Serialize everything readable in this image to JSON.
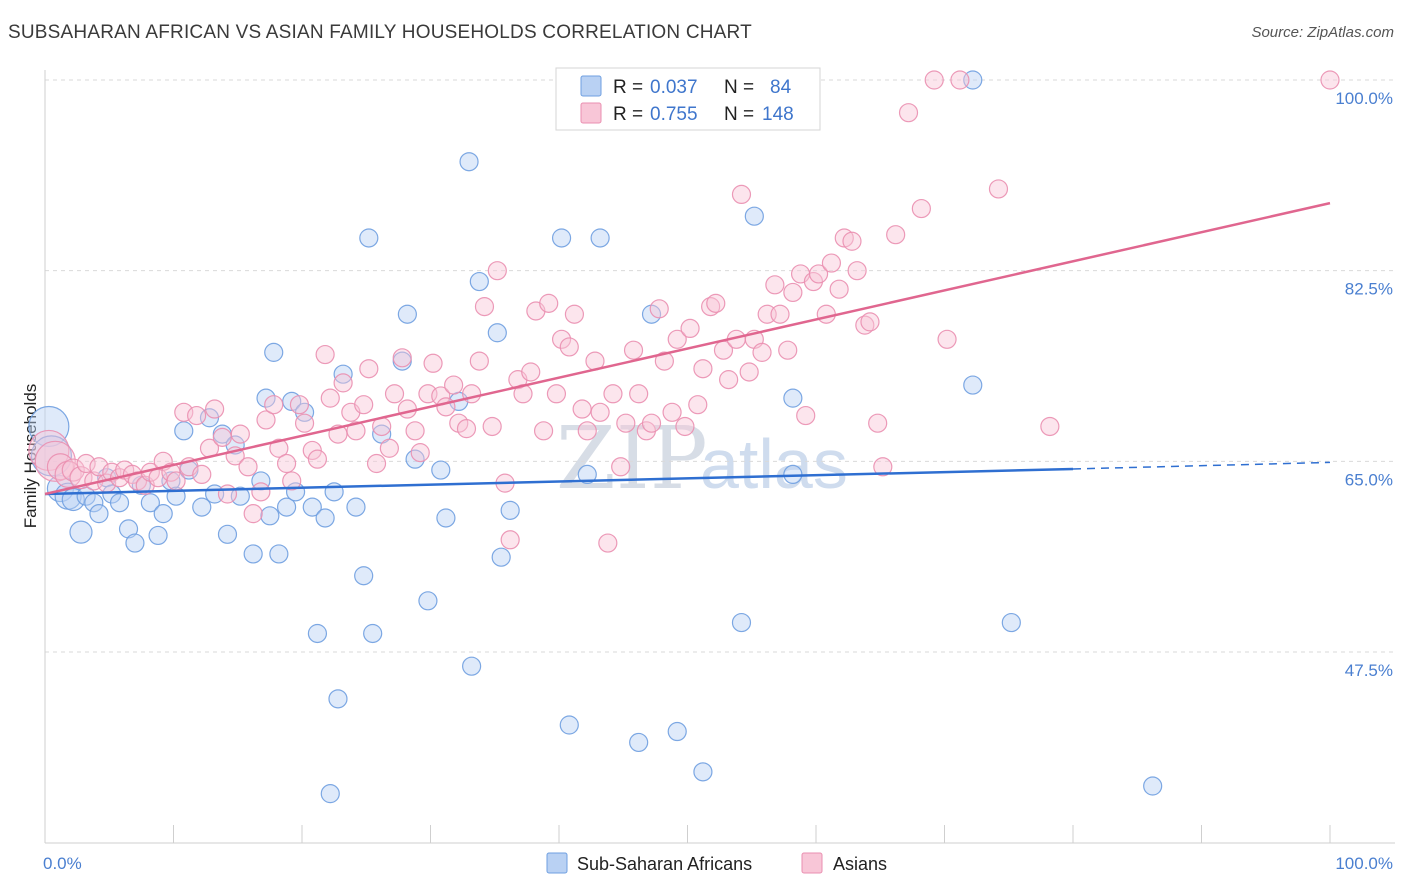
{
  "title": "SUBSAHARAN AFRICAN VS ASIAN FAMILY HOUSEHOLDS CORRELATION CHART",
  "source": "Source: ZipAtlas.com",
  "watermark": {
    "zip": "ZIP",
    "atlas": "atlas"
  },
  "colors": {
    "blue": "#6f9fe0",
    "blue_fill": "#b9d1f3",
    "blue_line": "#2f6fd1",
    "pink": "#ea8fb0",
    "pink_fill": "#f8c6d7",
    "pink_line": "#e0668f",
    "tick": "#4a7fd0",
    "grid": "#dadada"
  },
  "legend": {
    "rows": [
      {
        "r_label": "R = ",
        "r_value": "0.037",
        "n_label": "N = ",
        "n_value": "84"
      },
      {
        "r_label": "R = ",
        "r_value": "0.755",
        "n_label": "N = ",
        "n_value": "148"
      }
    ]
  },
  "chart_data": {
    "type": "scatter",
    "xlabel": "",
    "ylabel": "Family Households",
    "xlim": [
      0,
      100
    ],
    "ylim": [
      30,
      102
    ],
    "x_tick_labels": [
      "0.0%",
      "100.0%"
    ],
    "y_ticks": [
      47.5,
      65.0,
      82.5,
      100.0
    ],
    "y_tick_labels": [
      "47.5%",
      "65.0%",
      "82.5%",
      "100.0%"
    ],
    "grid": true,
    "legend_position": "top-center",
    "series": [
      {
        "name": "Sub-Saharan Africans",
        "color": "#6f9fe0",
        "trend": {
          "x0": 0,
          "y0": 62.0,
          "x1": 80,
          "y1": 64.3,
          "dash_to": 100,
          "dash_y": 64.9
        },
        "points": [
          [
            0.3,
            68.2
          ],
          [
            0.5,
            65.5
          ],
          [
            1.2,
            62.5
          ],
          [
            1.8,
            61.8
          ],
          [
            2.2,
            61.5
          ],
          [
            2.8,
            58.5
          ],
          [
            3.2,
            61.8
          ],
          [
            3.8,
            61.2
          ],
          [
            4.2,
            60.2
          ],
          [
            4.8,
            63.5
          ],
          [
            5.2,
            62.0
          ],
          [
            5.8,
            61.2
          ],
          [
            6.5,
            58.8
          ],
          [
            7.0,
            57.5
          ],
          [
            7.5,
            62.8
          ],
          [
            8.2,
            61.2
          ],
          [
            8.8,
            58.2
          ],
          [
            9.2,
            60.2
          ],
          [
            9.8,
            63.2
          ],
          [
            10.2,
            61.8
          ],
          [
            10.8,
            67.8
          ],
          [
            11.2,
            64.2
          ],
          [
            12.2,
            60.8
          ],
          [
            12.8,
            69.0
          ],
          [
            13.2,
            62.0
          ],
          [
            13.8,
            67.5
          ],
          [
            14.2,
            58.3
          ],
          [
            14.8,
            66.5
          ],
          [
            15.2,
            61.8
          ],
          [
            16.2,
            56.5
          ],
          [
            16.8,
            63.2
          ],
          [
            17.2,
            70.8
          ],
          [
            17.5,
            60.0
          ],
          [
            17.8,
            75.0
          ],
          [
            18.2,
            56.5
          ],
          [
            18.8,
            60.8
          ],
          [
            19.2,
            70.5
          ],
          [
            19.5,
            62.2
          ],
          [
            20.2,
            69.5
          ],
          [
            20.8,
            60.8
          ],
          [
            21.2,
            49.2
          ],
          [
            21.8,
            59.8
          ],
          [
            22.2,
            34.5
          ],
          [
            22.5,
            62.2
          ],
          [
            22.8,
            43.2
          ],
          [
            23.2,
            73.0
          ],
          [
            24.2,
            60.8
          ],
          [
            24.8,
            54.5
          ],
          [
            25.2,
            85.5
          ],
          [
            25.5,
            49.2
          ],
          [
            26.2,
            67.5
          ],
          [
            27.8,
            74.2
          ],
          [
            28.2,
            78.5
          ],
          [
            28.8,
            65.2
          ],
          [
            29.8,
            52.2
          ],
          [
            30.8,
            64.2
          ],
          [
            31.2,
            59.8
          ],
          [
            32.2,
            70.5
          ],
          [
            33.0,
            92.5
          ],
          [
            33.2,
            46.2
          ],
          [
            33.8,
            81.5
          ],
          [
            35.2,
            76.8
          ],
          [
            35.5,
            56.2
          ],
          [
            36.2,
            60.5
          ],
          [
            40.2,
            85.5
          ],
          [
            40.8,
            40.8
          ],
          [
            42.2,
            63.8
          ],
          [
            43.2,
            85.5
          ],
          [
            46.2,
            39.2
          ],
          [
            47.2,
            78.5
          ],
          [
            49.2,
            40.2
          ],
          [
            51.2,
            36.5
          ],
          [
            54.2,
            50.2
          ],
          [
            55.2,
            87.5
          ],
          [
            58.2,
            70.8
          ],
          [
            58.2,
            63.8
          ],
          [
            72.2,
            72.0
          ],
          [
            72.2,
            100.0
          ],
          [
            86.2,
            35.2
          ],
          [
            75.2,
            50.2
          ]
        ],
        "point_sizes_note": "larger markers near x=0"
      },
      {
        "name": "Asians",
        "color": "#ea8fb0",
        "trend": {
          "x0": 0,
          "y0": 62.0,
          "x1": 100,
          "y1": 88.7
        },
        "points": [
          [
            0.3,
            66.0
          ],
          [
            0.8,
            65.0
          ],
          [
            1.2,
            64.5
          ],
          [
            1.8,
            63.8
          ],
          [
            2.2,
            64.2
          ],
          [
            2.8,
            63.5
          ],
          [
            3.2,
            64.8
          ],
          [
            3.8,
            63.2
          ],
          [
            4.2,
            64.5
          ],
          [
            4.8,
            63.0
          ],
          [
            5.2,
            64.0
          ],
          [
            5.8,
            63.5
          ],
          [
            6.2,
            64.2
          ],
          [
            6.8,
            63.8
          ],
          [
            7.2,
            63.2
          ],
          [
            7.8,
            62.8
          ],
          [
            8.2,
            64.0
          ],
          [
            8.8,
            63.5
          ],
          [
            9.2,
            65.0
          ],
          [
            9.8,
            64.0
          ],
          [
            10.2,
            63.2
          ],
          [
            10.8,
            69.5
          ],
          [
            11.2,
            64.5
          ],
          [
            11.8,
            69.2
          ],
          [
            12.2,
            63.8
          ],
          [
            12.8,
            66.2
          ],
          [
            13.2,
            69.8
          ],
          [
            13.8,
            67.2
          ],
          [
            14.2,
            62.0
          ],
          [
            14.8,
            65.5
          ],
          [
            15.2,
            67.5
          ],
          [
            15.8,
            64.5
          ],
          [
            16.2,
            60.2
          ],
          [
            16.8,
            62.2
          ],
          [
            17.2,
            68.8
          ],
          [
            17.8,
            70.2
          ],
          [
            18.2,
            66.2
          ],
          [
            18.8,
            64.8
          ],
          [
            19.2,
            63.2
          ],
          [
            19.8,
            70.2
          ],
          [
            20.2,
            68.5
          ],
          [
            20.8,
            66.0
          ],
          [
            21.2,
            65.2
          ],
          [
            21.8,
            74.8
          ],
          [
            22.2,
            70.8
          ],
          [
            22.8,
            67.5
          ],
          [
            23.2,
            72.2
          ],
          [
            23.8,
            69.5
          ],
          [
            24.2,
            67.8
          ],
          [
            24.8,
            70.2
          ],
          [
            25.2,
            73.5
          ],
          [
            25.8,
            64.8
          ],
          [
            26.2,
            68.2
          ],
          [
            26.8,
            66.2
          ],
          [
            27.2,
            71.2
          ],
          [
            27.8,
            74.5
          ],
          [
            28.2,
            69.8
          ],
          [
            28.8,
            67.8
          ],
          [
            29.2,
            65.8
          ],
          [
            29.8,
            71.2
          ],
          [
            30.2,
            74.0
          ],
          [
            30.8,
            71.0
          ],
          [
            31.2,
            70.0
          ],
          [
            31.8,
            72.0
          ],
          [
            32.2,
            68.5
          ],
          [
            32.8,
            68.0
          ],
          [
            33.2,
            71.2
          ],
          [
            33.8,
            74.2
          ],
          [
            34.2,
            79.2
          ],
          [
            34.8,
            68.2
          ],
          [
            35.2,
            82.5
          ],
          [
            35.8,
            63.0
          ],
          [
            36.2,
            57.8
          ],
          [
            36.8,
            72.5
          ],
          [
            37.2,
            71.2
          ],
          [
            37.8,
            73.2
          ],
          [
            38.2,
            78.8
          ],
          [
            38.8,
            67.8
          ],
          [
            39.2,
            79.5
          ],
          [
            39.8,
            71.2
          ],
          [
            40.2,
            76.2
          ],
          [
            40.8,
            75.5
          ],
          [
            41.2,
            78.5
          ],
          [
            41.8,
            69.8
          ],
          [
            42.2,
            67.8
          ],
          [
            42.8,
            74.2
          ],
          [
            43.2,
            69.5
          ],
          [
            43.8,
            57.5
          ],
          [
            44.2,
            71.2
          ],
          [
            44.8,
            64.5
          ],
          [
            45.2,
            68.5
          ],
          [
            45.8,
            75.2
          ],
          [
            46.2,
            71.2
          ],
          [
            46.8,
            67.8
          ],
          [
            47.2,
            68.5
          ],
          [
            47.8,
            79.0
          ],
          [
            48.2,
            74.2
          ],
          [
            48.8,
            69.5
          ],
          [
            49.2,
            76.2
          ],
          [
            49.8,
            68.2
          ],
          [
            50.2,
            77.2
          ],
          [
            50.8,
            70.2
          ],
          [
            51.2,
            73.5
          ],
          [
            51.8,
            79.2
          ],
          [
            52.2,
            79.5
          ],
          [
            52.8,
            75.2
          ],
          [
            53.2,
            72.5
          ],
          [
            53.8,
            76.2
          ],
          [
            54.2,
            89.5
          ],
          [
            54.8,
            73.2
          ],
          [
            55.2,
            76.2
          ],
          [
            55.8,
            75.0
          ],
          [
            56.2,
            78.5
          ],
          [
            56.8,
            81.2
          ],
          [
            57.2,
            78.5
          ],
          [
            57.8,
            75.2
          ],
          [
            58.2,
            80.5
          ],
          [
            58.8,
            82.2
          ],
          [
            59.2,
            69.2
          ],
          [
            59.8,
            81.5
          ],
          [
            60.2,
            82.2
          ],
          [
            60.8,
            78.5
          ],
          [
            61.2,
            83.2
          ],
          [
            61.8,
            80.8
          ],
          [
            62.2,
            85.5
          ],
          [
            62.8,
            85.2
          ],
          [
            63.2,
            82.5
          ],
          [
            63.8,
            77.5
          ],
          [
            64.2,
            77.8
          ],
          [
            64.8,
            68.5
          ],
          [
            65.2,
            64.5
          ],
          [
            66.2,
            85.8
          ],
          [
            67.2,
            97.0
          ],
          [
            68.2,
            88.2
          ],
          [
            69.2,
            100.0
          ],
          [
            70.2,
            76.2
          ],
          [
            71.2,
            100.0
          ],
          [
            74.2,
            90.0
          ],
          [
            78.2,
            68.2
          ],
          [
            100.0,
            100.0
          ]
        ]
      }
    ]
  }
}
